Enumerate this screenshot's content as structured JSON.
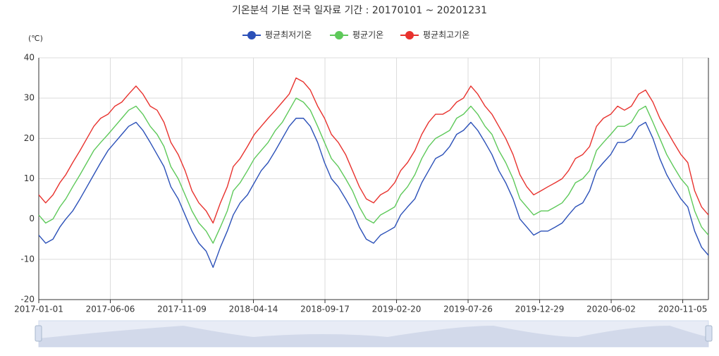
{
  "chart_data": {
    "type": "line",
    "title": "기온분석 기본 전국 일자료 기간 : 20170101 ~ 20201231",
    "y_label": "(℃)",
    "x": [
      "2017-01-01",
      "2017-01-16",
      "2017-02-01",
      "2017-02-16",
      "2017-03-01",
      "2017-03-16",
      "2017-04-01",
      "2017-04-16",
      "2017-05-01",
      "2017-05-16",
      "2017-06-01",
      "2017-06-16",
      "2017-07-01",
      "2017-07-16",
      "2017-08-01",
      "2017-08-16",
      "2017-09-01",
      "2017-09-16",
      "2017-10-01",
      "2017-10-16",
      "2017-11-01",
      "2017-11-16",
      "2017-12-01",
      "2017-12-16",
      "2018-01-01",
      "2018-01-16",
      "2018-02-01",
      "2018-02-16",
      "2018-03-01",
      "2018-03-16",
      "2018-04-01",
      "2018-04-16",
      "2018-05-01",
      "2018-05-16",
      "2018-06-01",
      "2018-06-16",
      "2018-07-01",
      "2018-07-16",
      "2018-08-01",
      "2018-08-16",
      "2018-09-01",
      "2018-09-16",
      "2018-10-01",
      "2018-10-16",
      "2018-11-01",
      "2018-11-16",
      "2018-12-01",
      "2018-12-16",
      "2019-01-01",
      "2019-01-16",
      "2019-02-01",
      "2019-02-16",
      "2019-03-01",
      "2019-03-16",
      "2019-04-01",
      "2019-04-16",
      "2019-05-01",
      "2019-05-16",
      "2019-06-01",
      "2019-06-16",
      "2019-07-01",
      "2019-07-16",
      "2019-08-01",
      "2019-08-16",
      "2019-09-01",
      "2019-09-16",
      "2019-10-01",
      "2019-10-16",
      "2019-11-01",
      "2019-11-16",
      "2019-12-01",
      "2019-12-16",
      "2020-01-01",
      "2020-01-16",
      "2020-02-01",
      "2020-02-16",
      "2020-03-01",
      "2020-03-16",
      "2020-04-01",
      "2020-04-16",
      "2020-05-01",
      "2020-05-16",
      "2020-06-01",
      "2020-06-16",
      "2020-07-01",
      "2020-07-16",
      "2020-08-01",
      "2020-08-16",
      "2020-09-01",
      "2020-09-16",
      "2020-10-01",
      "2020-10-16",
      "2020-11-01",
      "2020-11-16",
      "2020-12-01",
      "2020-12-16",
      "2020-12-31"
    ],
    "series": [
      {
        "name": "평균최저기온",
        "color": "#2b50b8",
        "values": [
          -4,
          -6,
          -5,
          -2,
          0,
          2,
          5,
          8,
          11,
          14,
          17,
          19,
          21,
          23,
          24,
          22,
          19,
          16,
          13,
          8,
          5,
          1,
          -3,
          -6,
          -8,
          -12,
          -7,
          -3,
          1,
          4,
          6,
          9,
          12,
          14,
          17,
          20,
          23,
          25,
          25,
          23,
          19,
          14,
          10,
          8,
          5,
          2,
          -2,
          -5,
          -6,
          -4,
          -3,
          -2,
          1,
          3,
          5,
          9,
          12,
          15,
          16,
          18,
          21,
          22,
          24,
          22,
          19,
          16,
          12,
          9,
          5,
          0,
          -2,
          -4,
          -3,
          -3,
          -2,
          -1,
          1,
          3,
          4,
          7,
          12,
          14,
          16,
          19,
          19,
          20,
          23,
          24,
          20,
          15,
          11,
          8,
          5,
          3,
          -3,
          -7,
          -9
        ]
      },
      {
        "name": "평균기온",
        "color": "#5ec95a",
        "values": [
          1,
          -1,
          0,
          3,
          5,
          8,
          11,
          14,
          17,
          19,
          21,
          23,
          25,
          27,
          28,
          26,
          23,
          21,
          18,
          13,
          10,
          6,
          2,
          -1,
          -3,
          -6,
          -2,
          2,
          7,
          9,
          12,
          15,
          17,
          19,
          22,
          24,
          27,
          30,
          29,
          27,
          23,
          19,
          15,
          13,
          10,
          7,
          3,
          0,
          -1,
          1,
          2,
          3,
          6,
          8,
          11,
          15,
          18,
          20,
          21,
          22,
          25,
          26,
          28,
          26,
          23,
          21,
          17,
          14,
          10,
          5,
          3,
          1,
          2,
          2,
          3,
          4,
          6,
          9,
          10,
          12,
          17,
          19,
          21,
          23,
          23,
          24,
          27,
          28,
          24,
          20,
          16,
          13,
          10,
          8,
          2,
          -2,
          -4
        ]
      },
      {
        "name": "평균최고기온",
        "color": "#e8322e",
        "values": [
          6,
          4,
          6,
          9,
          11,
          14,
          17,
          20,
          23,
          25,
          26,
          28,
          29,
          31,
          33,
          31,
          28,
          27,
          24,
          19,
          16,
          12,
          7,
          4,
          2,
          -1,
          4,
          8,
          13,
          15,
          18,
          21,
          23,
          25,
          27,
          29,
          31,
          35,
          34,
          32,
          28,
          25,
          21,
          19,
          16,
          12,
          8,
          5,
          4,
          6,
          7,
          9,
          12,
          14,
          17,
          21,
          24,
          26,
          26,
          27,
          29,
          30,
          33,
          31,
          28,
          26,
          23,
          20,
          16,
          11,
          8,
          6,
          7,
          8,
          9,
          10,
          12,
          15,
          16,
          18,
          23,
          25,
          26,
          28,
          27,
          28,
          31,
          32,
          29,
          25,
          22,
          19,
          16,
          14,
          7,
          3,
          1
        ]
      }
    ],
    "xlim": [
      "2017-01-01",
      "2020-12-31"
    ],
    "xticks": [
      "2017-01-01",
      "2017-06-06",
      "2017-11-09",
      "2018-04-14",
      "2018-09-17",
      "2019-02-20",
      "2019-07-26",
      "2019-12-29",
      "2020-06-02",
      "2020-11-05"
    ],
    "ylim": [
      -20,
      40
    ],
    "yticks": [
      -20,
      -10,
      0,
      10,
      20,
      30,
      40
    ],
    "grid": true
  }
}
